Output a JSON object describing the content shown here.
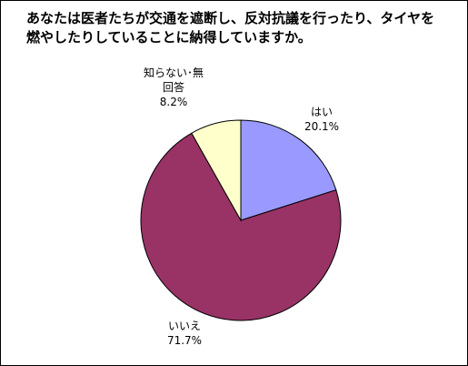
{
  "chart_data": {
    "type": "pie",
    "title": "あなたは医者たちが交通を遮断し、反対抗議を行ったり、タイヤを燃やしたりしていることに納得していますか。",
    "slices": [
      {
        "name": "はい",
        "label_lines": [
          "はい"
        ],
        "value": 20.1,
        "value_text": "20.1%",
        "color": "#9999ff"
      },
      {
        "name": "いいえ",
        "label_lines": [
          "いいえ"
        ],
        "value": 71.7,
        "value_text": "71.7%",
        "color": "#993366"
      },
      {
        "name": "知らない･無回答",
        "label_lines": [
          "知らない･無",
          "回答"
        ],
        "value": 8.2,
        "value_text": "8.2%",
        "color": "#ffffcc"
      }
    ],
    "start": "12 o'clock",
    "direction": "clockwise",
    "legend": "none",
    "labels": "outside slices, category and percentage"
  }
}
